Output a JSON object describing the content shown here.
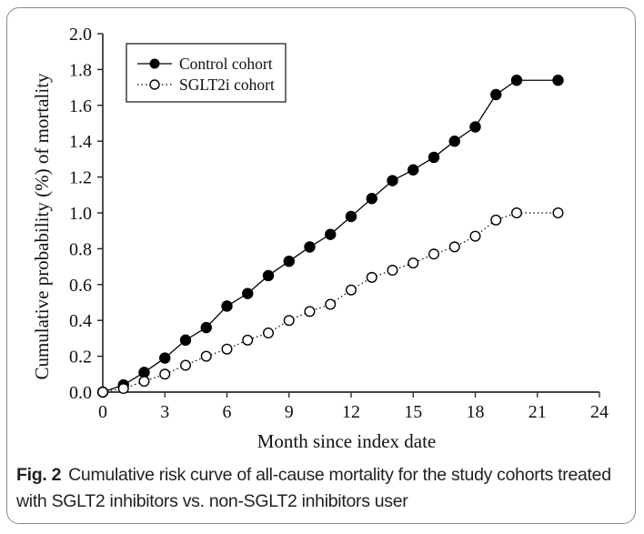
{
  "chart_data": {
    "type": "line",
    "title": "",
    "xlabel": "Month since index date",
    "ylabel": "Cumulative probability (%) of mortality",
    "xlim": [
      0,
      24
    ],
    "ylim": [
      0,
      2.0
    ],
    "xticks": [
      0,
      3,
      6,
      9,
      12,
      15,
      18,
      21,
      24
    ],
    "xtick_labels": [
      "0",
      "3",
      "6",
      "9",
      "12",
      "15",
      "18",
      "21",
      "24"
    ],
    "yticks": [
      0,
      0.2,
      0.4,
      0.6,
      0.8,
      1.0,
      1.2,
      1.4,
      1.6,
      1.8,
      2.0
    ],
    "ytick_labels": [
      "0.0",
      "0.2",
      "0.4",
      "0.6",
      "0.8",
      "1.0",
      "1.2",
      "1.4",
      "1.6",
      "1.8",
      "2.0"
    ],
    "grid": false,
    "legend_position": "top-left",
    "series": [
      {
        "name": "Control cohort",
        "marker": "filled-circle",
        "line_style": "solid",
        "color": "#000000",
        "x": [
          0,
          1,
          2,
          3,
          4,
          5,
          6,
          7,
          8,
          9,
          10,
          11,
          12,
          13,
          14,
          15,
          16,
          17,
          18,
          19,
          20,
          22
        ],
        "values": [
          0.0,
          0.04,
          0.11,
          0.19,
          0.29,
          0.36,
          0.48,
          0.55,
          0.65,
          0.73,
          0.81,
          0.88,
          0.98,
          1.08,
          1.18,
          1.24,
          1.31,
          1.4,
          1.48,
          1.66,
          1.74,
          1.74
        ]
      },
      {
        "name": "SGLT2i cohort",
        "marker": "open-circle",
        "line_style": "dotted",
        "color": "#000000",
        "x": [
          0,
          1,
          2,
          3,
          4,
          5,
          6,
          7,
          8,
          9,
          10,
          11,
          12,
          13,
          14,
          15,
          16,
          17,
          18,
          19,
          20,
          22
        ],
        "values": [
          0.0,
          0.02,
          0.06,
          0.1,
          0.15,
          0.2,
          0.24,
          0.29,
          0.33,
          0.4,
          0.45,
          0.49,
          0.57,
          0.64,
          0.68,
          0.72,
          0.77,
          0.81,
          0.87,
          0.96,
          1.0,
          1.0
        ]
      }
    ]
  },
  "caption": {
    "label": "Fig. 2",
    "text": "Cumulative risk curve of all-cause mortality for the study cohorts treated with SGLT2 inhibitors vs. non-SGLT2 inhibitors user"
  }
}
